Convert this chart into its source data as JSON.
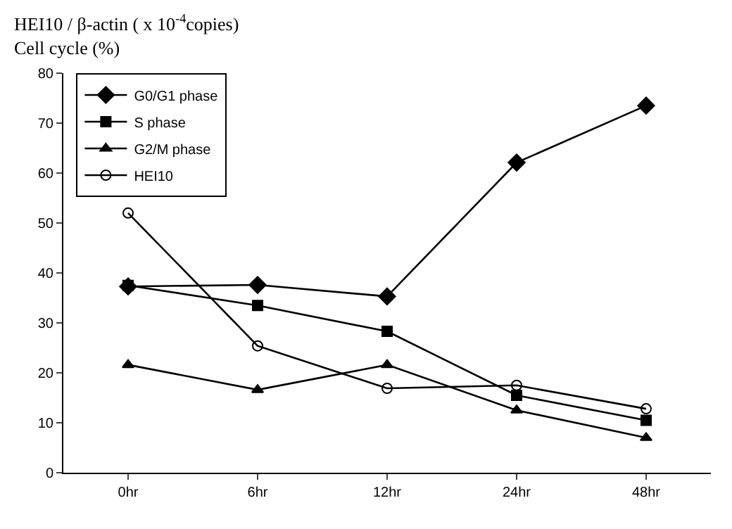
{
  "chart_data": {
    "type": "line",
    "ylabel": "HEI10 / β-actin ( x 10$^{-4}$copies)\nCell cycle (%)",
    "categories": [
      "0hr",
      "6hr",
      "12hr",
      "24hr",
      "48hr"
    ],
    "ylim": [
      0,
      80
    ],
    "yticks": [
      0,
      10,
      20,
      30,
      40,
      50,
      60,
      70,
      80
    ],
    "grid": false,
    "legend": "top left",
    "series": [
      {
        "name": "G0/G1 phase",
        "color": "#000000",
        "marker": "diamond",
        "values": [
          37.3,
          37.6,
          35.3,
          62.1,
          73.5
        ]
      },
      {
        "name": "S phase",
        "color": "#000000",
        "marker": "square",
        "values": [
          37.5,
          33.5,
          28.3,
          15.5,
          10.5
        ]
      },
      {
        "name": "G2/M phase",
        "color": "#000000",
        "marker": "triangle",
        "values": [
          21.6,
          16.6,
          21.6,
          12.5,
          7
        ]
      },
      {
        "name": "HEI10",
        "color": "#000000",
        "marker": "circle",
        "values": [
          52,
          25.4,
          16.9,
          17.5,
          12.8
        ]
      }
    ]
  }
}
